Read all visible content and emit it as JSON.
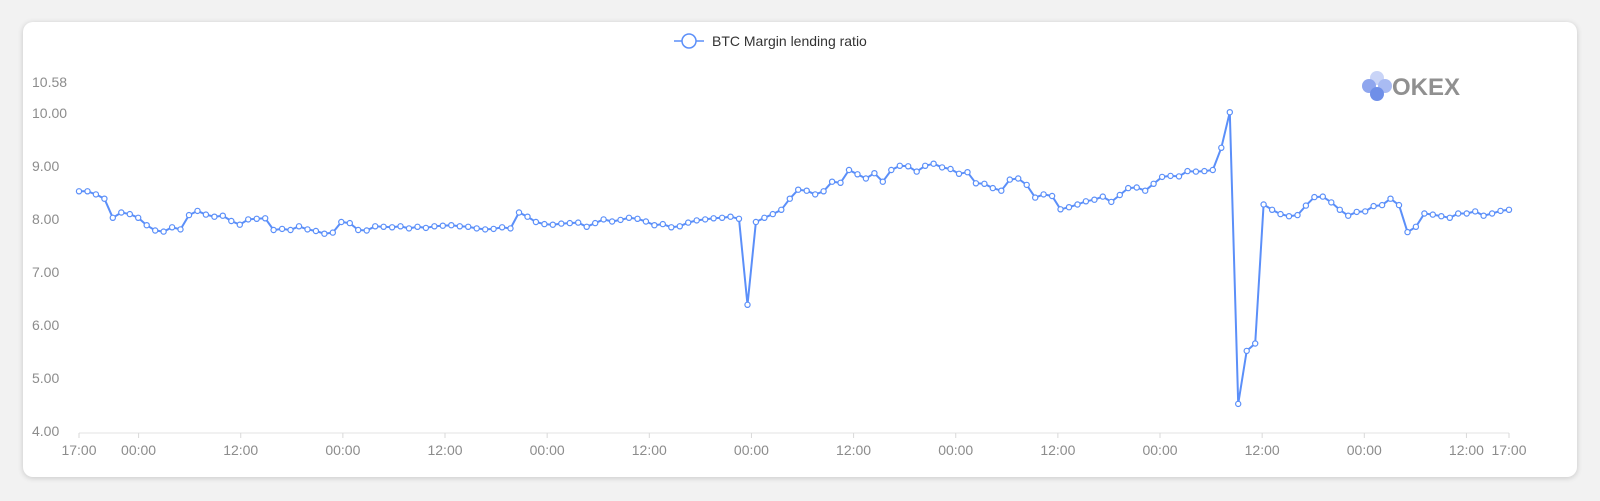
{
  "brand": {
    "name": "OKEX",
    "colors": [
      "#6f8fe8",
      "#a9bbf3",
      "#c9d4f7",
      "#8fa6ee"
    ]
  },
  "chart_data": {
    "type": "line",
    "title": "",
    "xlabel": "",
    "ylabel": "",
    "ylim": [
      4.0,
      10.58
    ],
    "y_ticks": [
      "4.00",
      "5.00",
      "6.00",
      "7.00",
      "8.00",
      "9.00",
      "10.00",
      "10.58"
    ],
    "x_tick_labels": [
      "17:00",
      "00:00",
      "12:00",
      "00:00",
      "12:00",
      "00:00",
      "12:00",
      "00:00",
      "12:00",
      "00:00",
      "12:00",
      "00:00",
      "12:00",
      "00:00",
      "12:00",
      "17:00"
    ],
    "x_tick_hours": [
      0,
      7,
      19,
      31,
      43,
      55,
      67,
      79,
      91,
      103,
      115,
      127,
      139,
      151,
      163,
      168
    ],
    "x_range_hours": [
      0,
      168
    ],
    "series": [
      {
        "name": "BTC Margin lending ratio",
        "color": "#5b8ff9",
        "values": [
          8.52,
          8.52,
          8.46,
          8.38,
          8.02,
          8.12,
          8.09,
          8.02,
          7.88,
          7.78,
          7.76,
          7.84,
          7.8,
          8.07,
          8.15,
          8.08,
          8.04,
          8.06,
          7.96,
          7.89,
          7.99,
          8.0,
          8.01,
          7.79,
          7.81,
          7.79,
          7.86,
          7.8,
          7.77,
          7.72,
          7.74,
          7.94,
          7.92,
          7.79,
          7.78,
          7.86,
          7.85,
          7.84,
          7.86,
          7.82,
          7.85,
          7.83,
          7.86,
          7.87,
          7.88,
          7.86,
          7.85,
          7.82,
          7.8,
          7.81,
          7.84,
          7.82,
          8.12,
          8.04,
          7.94,
          7.9,
          7.89,
          7.91,
          7.92,
          7.93,
          7.85,
          7.92,
          7.99,
          7.95,
          7.98,
          8.02,
          8.0,
          7.95,
          7.88,
          7.9,
          7.84,
          7.86,
          7.93,
          7.97,
          7.99,
          8.01,
          8.02,
          8.04,
          8.0,
          6.38,
          7.94,
          8.02,
          8.09,
          8.17,
          8.38,
          8.55,
          8.53,
          8.46,
          8.52,
          8.7,
          8.68,
          8.92,
          8.84,
          8.76,
          8.86,
          8.7,
          8.92,
          9.0,
          8.99,
          8.89,
          9.0,
          9.04,
          8.97,
          8.94,
          8.85,
          8.88,
          8.67,
          8.66,
          8.58,
          8.53,
          8.74,
          8.76,
          8.64,
          8.4,
          8.46,
          8.43,
          8.18,
          8.22,
          8.27,
          8.33,
          8.36,
          8.42,
          8.32,
          8.45,
          8.58,
          8.59,
          8.53,
          8.66,
          8.79,
          8.81,
          8.8,
          8.9,
          8.89,
          8.9,
          8.92,
          9.34,
          10.01,
          4.51,
          5.51,
          5.65,
          8.27,
          8.17,
          8.09,
          8.05,
          8.07,
          8.25,
          8.41,
          8.42,
          8.31,
          8.17,
          8.06,
          8.13,
          8.14,
          8.24,
          8.26,
          8.38,
          8.26,
          7.75,
          7.85,
          8.1,
          8.08,
          8.05,
          8.02,
          8.1,
          8.1,
          8.14,
          8.06,
          8.1,
          8.15,
          8.17
        ]
      }
    ],
    "legend": "top-center",
    "grid": false
  }
}
